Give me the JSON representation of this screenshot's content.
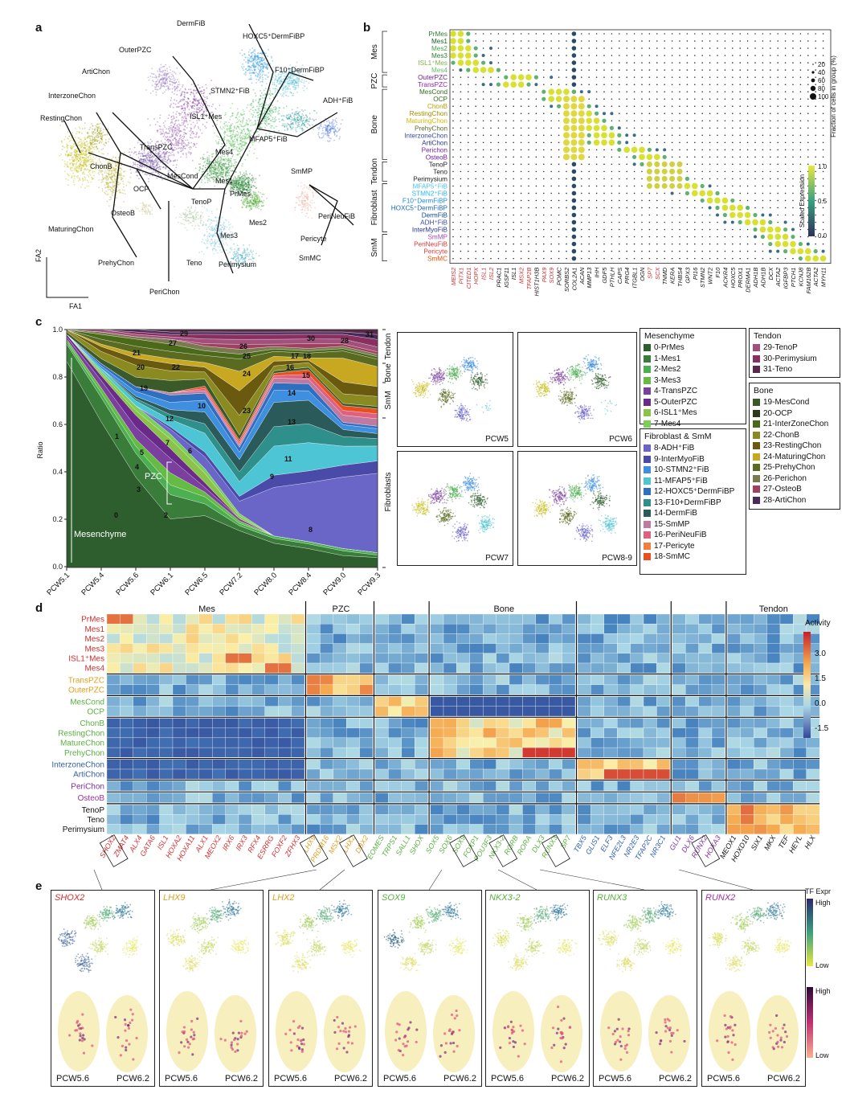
{
  "panels": {
    "a": "a",
    "b": "b",
    "c": "c",
    "d": "d",
    "e": "e"
  },
  "panel_a": {
    "axis_y": "FA2",
    "axis_x": "FA1",
    "labels": [
      {
        "text": "DermFiB"
      },
      {
        "text": "HOXC5⁺DermFiBP"
      },
      {
        "text": "OuterPZC"
      },
      {
        "text": "F10⁺DermFiBP"
      },
      {
        "text": "ArtiChon"
      },
      {
        "text": "STMN2⁺FiB"
      },
      {
        "text": "ADH⁺FiB"
      },
      {
        "text": "InterzoneChon"
      },
      {
        "text": "ISL1⁺Mes"
      },
      {
        "text": "RestingChon"
      },
      {
        "text": "MFAP5⁺FiB"
      },
      {
        "text": "TransPZC"
      },
      {
        "text": "Mes4"
      },
      {
        "text": "ChonB"
      },
      {
        "text": "MesCond"
      },
      {
        "text": "SmMP"
      },
      {
        "text": "Mes1"
      },
      {
        "text": "OCP"
      },
      {
        "text": "PrMes"
      },
      {
        "text": "TenoP"
      },
      {
        "text": "OsteoB"
      },
      {
        "text": "PeriNeuFiB"
      },
      {
        "text": "Mes2"
      },
      {
        "text": "MaturingChon"
      },
      {
        "text": "Mes3"
      },
      {
        "text": "Pericyte"
      },
      {
        "text": "PrehyChon"
      },
      {
        "text": "SmMC"
      },
      {
        "text": "Teno"
      },
      {
        "text": "Perimysium"
      },
      {
        "text": "PeriChon"
      }
    ]
  },
  "panel_b": {
    "rows": [
      "PrMes",
      "Mes1",
      "Mes2",
      "Mes3",
      "ISL1⁺Mes",
      "Mes4",
      "OuterPZC",
      "TransPZC",
      "MesCond",
      "OCP",
      "ChonB",
      "RestingChon",
      "MaturingChon",
      "PrehyChon",
      "InterzoneChon",
      "ArtiChon",
      "Perichon",
      "OsteoB",
      "TenoP",
      "Teno",
      "Perimysium",
      "MFAP5⁺FiB",
      "STMN2⁺FiB",
      "F10⁺DermFiBP",
      "HOXC5⁺DermFiBP",
      "DermFiB",
      "ADH⁺FiB",
      "InterMyoFiB",
      "SmMP",
      "PeriNeuFiB",
      "Pericyte",
      "SmMC"
    ],
    "row_colors": [
      "#2e7d32",
      "#1b5e20",
      "#43a047",
      "#2e7d32",
      "#7cb342",
      "#66bb6a",
      "#6a1b9a",
      "#8e24aa",
      "#33691e",
      "#33691e",
      "#c0a000",
      "#a08c00",
      "#d4b800",
      "#556b2f",
      "#3949ab",
      "#283593",
      "#7b1fa2",
      "#6a1b9a",
      "#222222",
      "#222222",
      "#222222",
      "#4fc3f7",
      "#29b6f6",
      "#1e88e5",
      "#1565c0",
      "#0d47a1",
      "#3949ab",
      "#283593",
      "#ab47bc",
      "#e53935",
      "#e53935",
      "#e65100"
    ],
    "groups": [
      "Mes",
      "PZC",
      "Bone",
      "Tendon",
      "Fibroblast",
      "SmM"
    ],
    "genes": [
      {
        "g": "MEIS2",
        "c": "#d32f2f"
      },
      {
        "g": "PITX1",
        "c": "#d32f2f"
      },
      {
        "g": "CITED1",
        "c": "#d32f2f"
      },
      {
        "g": "HOPX",
        "c": "#d32f2f"
      },
      {
        "g": "ISL1",
        "c": "#d32f2f"
      },
      {
        "g": "ISL2",
        "c": "#d32f2f"
      },
      {
        "g": "PRAC1",
        "c": "#111"
      },
      {
        "g": "IGSF11",
        "c": "#111"
      },
      {
        "g": "ISL1",
        "c": "#111"
      },
      {
        "g": "MSX2",
        "c": "#d32f2f"
      },
      {
        "g": "TFAP2B",
        "c": "#d32f2f"
      },
      {
        "g": "HIST1H3B",
        "c": "#111"
      },
      {
        "g": "PAX9",
        "c": "#d32f2f"
      },
      {
        "g": "SOX9",
        "c": "#d32f2f"
      },
      {
        "g": "POMC",
        "c": "#111"
      },
      {
        "g": "SORBS2",
        "c": "#111"
      },
      {
        "g": "COL2A1",
        "c": "#111"
      },
      {
        "g": "ACAN",
        "c": "#111"
      },
      {
        "g": "MMP13",
        "c": "#111"
      },
      {
        "g": "IHH",
        "c": "#111"
      },
      {
        "g": "GDF5",
        "c": "#111"
      },
      {
        "g": "PTHLH",
        "c": "#111"
      },
      {
        "g": "CAPS",
        "c": "#111"
      },
      {
        "g": "PRG4",
        "c": "#111"
      },
      {
        "g": "ITGBL1",
        "c": "#111"
      },
      {
        "g": "OGN",
        "c": "#111"
      },
      {
        "g": "SP7",
        "c": "#d32f2f"
      },
      {
        "g": "SCX",
        "c": "#d32f2f"
      },
      {
        "g": "TNMD",
        "c": "#111"
      },
      {
        "g": "KERA",
        "c": "#111"
      },
      {
        "g": "THBS4",
        "c": "#111"
      },
      {
        "g": "GPX3",
        "c": "#111"
      },
      {
        "g": "PI16",
        "c": "#111"
      },
      {
        "g": "STMN2",
        "c": "#111"
      },
      {
        "g": "WNT2",
        "c": "#111"
      },
      {
        "g": "F10",
        "c": "#111"
      },
      {
        "g": "ACKR4",
        "c": "#111"
      },
      {
        "g": "HOXC5",
        "c": "#111"
      },
      {
        "g": "PROX1",
        "c": "#111"
      },
      {
        "g": "DERMA1",
        "c": "#111"
      },
      {
        "g": "ADH1B",
        "c": "#111"
      },
      {
        "g": "ADH1B",
        "c": "#111"
      },
      {
        "g": "DCX",
        "c": "#111"
      },
      {
        "g": "ACTA2",
        "c": "#111"
      },
      {
        "g": "IGFBP3",
        "c": "#111"
      },
      {
        "g": "PTCH1",
        "c": "#111"
      },
      {
        "g": "KCNJ8",
        "c": "#111"
      },
      {
        "g": "FAM162B",
        "c": "#111"
      },
      {
        "g": "ACTA2",
        "c": "#111"
      },
      {
        "g": "MYH11",
        "c": "#111"
      }
    ],
    "legend_size_title": "Fraction of cells in group (%)",
    "legend_sizes": [
      "20",
      "40",
      "60",
      "80",
      "100"
    ],
    "legend_color_title": "Scaled Expression",
    "legend_color_ticks": [
      "1.0",
      "0.5",
      "0.0"
    ]
  },
  "panel_c": {
    "ylabel": "Ratio",
    "yticks": [
      "1.0",
      "0.8",
      "0.6",
      "0.4",
      "0.2",
      "0.0"
    ],
    "xticks": [
      "PCW5.1",
      "PCW5.4",
      "PCW5.6",
      "PCW6.1",
      "PCW6.5",
      "PCW7.2",
      "PCW8.0",
      "PCW8.4",
      "PCW9.0",
      "PCW9.3"
    ],
    "side_labels": [
      "Tendon",
      "Bone",
      "SmM",
      "Fibroblasts"
    ],
    "annot_mesenchyme": "Mesenchyme",
    "annot_pzc": "PZC",
    "area_numbers": [
      "29",
      "27",
      "21",
      "22",
      "20",
      "19",
      "12",
      "10",
      "7",
      "6",
      "5",
      "4",
      "3",
      "2",
      "1",
      "0",
      "26",
      "25",
      "24",
      "23",
      "30",
      "17",
      "18",
      "16",
      "15",
      "14",
      "13",
      "11",
      "9",
      "8",
      "28",
      "31"
    ],
    "umaps": [
      "PCW5",
      "PCW6",
      "PCW7",
      "PCW8-9"
    ],
    "legend": {
      "mes": {
        "title": "Mesenchyme",
        "items": [
          {
            "l": "0-PrMes",
            "c": "#2e5e2e"
          },
          {
            "l": "1-Mes1",
            "c": "#3a7d3a"
          },
          {
            "l": "2-Mes2",
            "c": "#4caf50"
          },
          {
            "l": "3-Mes3",
            "c": "#66bb44"
          },
          {
            "l": "4-TransPZC",
            "c": "#7b3f9e"
          },
          {
            "l": "5-OuterPZC",
            "c": "#6a2a8a"
          },
          {
            "l": "6-ISL1⁺Mes",
            "c": "#8bc34a"
          },
          {
            "l": "7-Mes4",
            "c": "#7ccf5a"
          }
        ]
      },
      "fib": {
        "title": "Fibroblast & SmM",
        "items": [
          {
            "l": "8-ADH⁺FiB",
            "c": "#6a66c8"
          },
          {
            "l": "9-InterMyoFiB",
            "c": "#4a4aa8"
          },
          {
            "l": "10-STMN2⁺FiB",
            "c": "#3f8fe0"
          },
          {
            "l": "11-MFAP5⁺FiB",
            "c": "#4ec5d4"
          },
          {
            "l": "12-HOXC5⁺DermFiBP",
            "c": "#2f6fc0"
          },
          {
            "l": "13-F10+DermFiBP",
            "c": "#2f8f8a"
          },
          {
            "l": "14-DermFiB",
            "c": "#2b5a5a"
          },
          {
            "l": "15-SmMP",
            "c": "#c07aa0"
          },
          {
            "l": "16-PeriNeuFiB",
            "c": "#e06080"
          },
          {
            "l": "17-Pericyte",
            "c": "#f08040"
          },
          {
            "l": "18-SmMC",
            "c": "#e85020"
          }
        ]
      },
      "ten": {
        "title": "Tendon",
        "items": [
          {
            "l": "29-TenoP",
            "c": "#a0507a"
          },
          {
            "l": "30-Perimysium",
            "c": "#8a3060"
          },
          {
            "l": "31-Teno",
            "c": "#5a2848"
          }
        ]
      },
      "bone": {
        "title": "Bone",
        "items": [
          {
            "l": "19-MesCond",
            "c": "#3a5a2a"
          },
          {
            "l": "20-OCP",
            "c": "#2a3a1a"
          },
          {
            "l": "21-InterZoneChon",
            "c": "#4a6a1a"
          },
          {
            "l": "22-ChonB",
            "c": "#8a8a20"
          },
          {
            "l": "23-RestingChon",
            "c": "#6a5a10"
          },
          {
            "l": "24-MaturingChon",
            "c": "#c8a820"
          },
          {
            "l": "25-PrehyChon",
            "c": "#5a6a20"
          },
          {
            "l": "26-Perichon",
            "c": "#7a7a50"
          },
          {
            "l": "27-OsteoB",
            "c": "#a04060"
          },
          {
            "l": "28-ArtiChon",
            "c": "#4a2a5a"
          }
        ]
      }
    }
  },
  "panel_d": {
    "groups": [
      "Mes",
      "PZC",
      "Bone",
      "Tendon"
    ],
    "rows": [
      {
        "l": "PrMes",
        "c": "#d32f2f"
      },
      {
        "l": "Mes1",
        "c": "#d32f2f"
      },
      {
        "l": "Mes2",
        "c": "#d32f2f"
      },
      {
        "l": "Mes3",
        "c": "#d32f2f"
      },
      {
        "l": "ISL1⁺Mes",
        "c": "#d32f2f"
      },
      {
        "l": "Mes4",
        "c": "#d32f2f"
      },
      {
        "l": "TransPZC",
        "c": "#e0a020"
      },
      {
        "l": "OuterPZC",
        "c": "#e0a020"
      },
      {
        "l": "MesCond",
        "c": "#5ab040"
      },
      {
        "l": "OCP",
        "c": "#5ab040"
      },
      {
        "l": "ChonB",
        "c": "#5ab040"
      },
      {
        "l": "RestingChon",
        "c": "#5ab040"
      },
      {
        "l": "MatureChon",
        "c": "#5ab040"
      },
      {
        "l": "PrehyChon",
        "c": "#5ab040"
      },
      {
        "l": "InterzoneChon",
        "c": "#3060b0"
      },
      {
        "l": "ArtiChon",
        "c": "#3060b0"
      },
      {
        "l": "PeriChon",
        "c": "#8030a0"
      },
      {
        "l": "OsteoB",
        "c": "#a030a0"
      },
      {
        "l": "TenoP",
        "c": "#111"
      },
      {
        "l": "Teno",
        "c": "#111"
      },
      {
        "l": "Perimysium",
        "c": "#111"
      }
    ],
    "cols": [
      {
        "g": "SHOX2",
        "c": "#d32f2f"
      },
      {
        "g": "ZMAT4",
        "c": "#d32f2f"
      },
      {
        "g": "ALX4",
        "c": "#d32f2f"
      },
      {
        "g": "GATA6",
        "c": "#d32f2f"
      },
      {
        "g": "ISL1",
        "c": "#d32f2f"
      },
      {
        "g": "HOXA2",
        "c": "#d32f2f"
      },
      {
        "g": "HOXA11",
        "c": "#d32f2f"
      },
      {
        "g": "ALX1",
        "c": "#d32f2f"
      },
      {
        "g": "MEOX2",
        "c": "#d32f2f"
      },
      {
        "g": "IRX6",
        "c": "#d32f2f"
      },
      {
        "g": "IRX3",
        "c": "#d32f2f"
      },
      {
        "g": "RFX4",
        "c": "#d32f2f"
      },
      {
        "g": "ESRRG",
        "c": "#d32f2f"
      },
      {
        "g": "FOXF2",
        "c": "#d32f2f"
      },
      {
        "g": "ZFHX3",
        "c": "#d32f2f"
      },
      {
        "g": "LHX9",
        "c": "#e0a020"
      },
      {
        "g": "PRDM16",
        "c": "#e0a020"
      },
      {
        "g": "MSX2",
        "c": "#e0a020"
      },
      {
        "g": "LHX2",
        "c": "#e0a020"
      },
      {
        "g": "DBX2",
        "c": "#e0a020"
      },
      {
        "g": "EOMES",
        "c": "#5ab040"
      },
      {
        "g": "TRPS1",
        "c": "#5ab040"
      },
      {
        "g": "SALL1",
        "c": "#5ab040"
      },
      {
        "g": "SHOX",
        "c": "#5ab040"
      },
      {
        "g": "SOX5",
        "c": "#5ab040"
      },
      {
        "g": "SOX6",
        "c": "#5ab040"
      },
      {
        "g": "SOX9",
        "c": "#5ab040"
      },
      {
        "g": "FOXP1",
        "c": "#5ab040"
      },
      {
        "g": "POU3F3",
        "c": "#5ab040"
      },
      {
        "g": "NKX3-2",
        "c": "#5ab040"
      },
      {
        "g": "RORB",
        "c": "#5ab040"
      },
      {
        "g": "RORA",
        "c": "#5ab040"
      },
      {
        "g": "DLX3",
        "c": "#5ab040"
      },
      {
        "g": "RUNX3",
        "c": "#5ab040"
      },
      {
        "g": "SP7",
        "c": "#5ab040"
      },
      {
        "g": "TBX5",
        "c": "#3060b0"
      },
      {
        "g": "GLIS1",
        "c": "#3060b0"
      },
      {
        "g": "ELF3",
        "c": "#3060b0"
      },
      {
        "g": "NFE2L3",
        "c": "#3060b0"
      },
      {
        "g": "NR2E3",
        "c": "#3060b0"
      },
      {
        "g": "TFAP2C",
        "c": "#3060b0"
      },
      {
        "g": "NR3C1",
        "c": "#3060b0"
      },
      {
        "g": "GLI1",
        "c": "#8030a0"
      },
      {
        "g": "DLX6",
        "c": "#8030a0"
      },
      {
        "g": "RUNX2",
        "c": "#8030a0"
      },
      {
        "g": "HOXA3",
        "c": "#8030a0"
      },
      {
        "g": "MEOX1",
        "c": "#111"
      },
      {
        "g": "HOXD10",
        "c": "#111"
      },
      {
        "g": "SIX1",
        "c": "#111"
      },
      {
        "g": "MKX",
        "c": "#111"
      },
      {
        "g": "TEF",
        "c": "#111"
      },
      {
        "g": "HEYL",
        "c": "#111"
      },
      {
        "g": "HLX",
        "c": "#111"
      }
    ],
    "legend_title": "Activity",
    "legend_ticks": [
      "3.0",
      "1.5",
      "0.0",
      "-1.5"
    ]
  },
  "panel_e": {
    "genes": [
      {
        "g": "SHOX2",
        "c": "#d32f2f"
      },
      {
        "g": "LHX9",
        "c": "#e0a020"
      },
      {
        "g": "LHX2",
        "c": "#e0a020"
      },
      {
        "g": "SOX9",
        "c": "#5ab040"
      },
      {
        "g": "NKX3-2",
        "c": "#5ab040"
      },
      {
        "g": "RUNX3",
        "c": "#5ab040"
      },
      {
        "g": "RUNX2",
        "c": "#a030a0"
      }
    ],
    "pcw_left": "PCW5.6",
    "pcw_right": "PCW6.2",
    "legend_tf": "TF Expr",
    "legend_high": "High",
    "legend_low": "Low",
    "legend_high2": "High",
    "legend_low2": "Low"
  }
}
